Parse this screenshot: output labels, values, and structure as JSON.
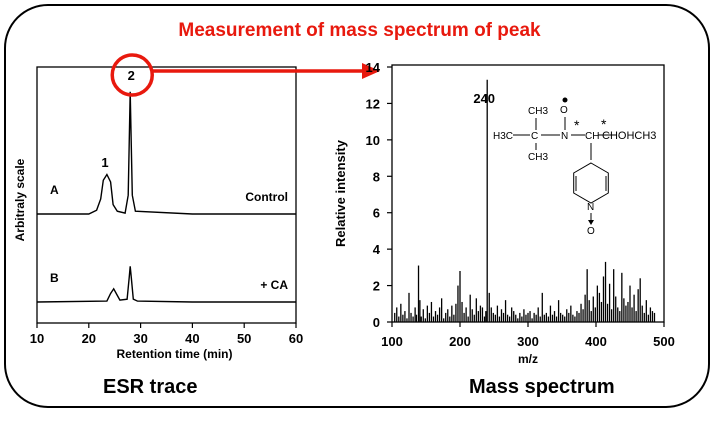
{
  "headline": "Measurement of mass spectrum of peak",
  "chart_data": [
    {
      "type": "line",
      "caption": "ESR trace",
      "xlabel": "Retention time (min)",
      "ylabel": "Arbitraly scale",
      "xlim": [
        10,
        60
      ],
      "xticks": [
        10,
        20,
        30,
        40,
        50,
        60
      ],
      "grid": false,
      "peak_labels": [
        {
          "label": "1",
          "x": 23.5
        },
        {
          "label": "2",
          "x": 28.0
        }
      ],
      "highlighted_peak": "2",
      "series": [
        {
          "label": "A",
          "note": "Control",
          "x": [
            10,
            20,
            21.5,
            22.3,
            22.8,
            23.5,
            24.2,
            24.7,
            25.5,
            27.0,
            27.6,
            28.0,
            28.4,
            29.0,
            40,
            60
          ],
          "y": [
            0,
            0,
            0.4,
            1.6,
            3.6,
            4.2,
            3.4,
            1.0,
            0.3,
            0.1,
            2.0,
            13.0,
            2.0,
            0.3,
            0,
            0
          ]
        },
        {
          "label": "B",
          "note": "+ CA",
          "x": [
            10,
            23.5,
            24.2,
            24.8,
            25.4,
            26.0,
            27.4,
            27.8,
            28.0,
            28.2,
            28.6,
            29.4,
            40,
            60
          ],
          "y": [
            0,
            0.1,
            0.9,
            1.4,
            0.8,
            0.2,
            0.3,
            2.6,
            3.8,
            2.6,
            0.3,
            0.1,
            0,
            0
          ]
        }
      ]
    },
    {
      "type": "bar",
      "caption": "Mass spectrum",
      "xlabel": "m/z",
      "ylabel": "Relative intensity",
      "xlim": [
        100,
        500
      ],
      "ylim": [
        0,
        14
      ],
      "xticks": [
        100,
        200,
        300,
        400,
        500
      ],
      "yticks": [
        0,
        2,
        4,
        6,
        8,
        10,
        12,
        14
      ],
      "grid": false,
      "annotations": [
        {
          "text": "240",
          "x": 240
        }
      ],
      "structure": {
        "top_methyl": "CH3",
        "left_methyl": "H3C",
        "bottom_methyl": "CH3",
        "quaternary_carbon": "C",
        "nitrogen": "N",
        "oxygen": "O",
        "methine": "CH",
        "side_chain": "CHOHCH3",
        "star": "*",
        "ring_nitrogen": "N",
        "n_oxide": "O"
      },
      "x": [
        104,
        107,
        110,
        113,
        116,
        119,
        122,
        125,
        128,
        131,
        134,
        136,
        139,
        141,
        143,
        146,
        149,
        152,
        155,
        158,
        161,
        164,
        167,
        170,
        173,
        176,
        179,
        182,
        185,
        188,
        191,
        194,
        197,
        200,
        203,
        206,
        209,
        212,
        215,
        218,
        221,
        224,
        227,
        230,
        233,
        236,
        238,
        240,
        243,
        246,
        249,
        252,
        255,
        258,
        261,
        264,
        267,
        270,
        273,
        276,
        279,
        282,
        285,
        288,
        291,
        294,
        297,
        300,
        303,
        306,
        309,
        312,
        315,
        318,
        321,
        324,
        327,
        330,
        333,
        336,
        339,
        342,
        345,
        348,
        351,
        354,
        357,
        360,
        363,
        366,
        369,
        372,
        375,
        378,
        381,
        384,
        387,
        390,
        393,
        396,
        399,
        402,
        405,
        408,
        411,
        414,
        417,
        420,
        423,
        426,
        429,
        432,
        435,
        438,
        441,
        444,
        447,
        450,
        453,
        456,
        459,
        462,
        465,
        468,
        471,
        474,
        477,
        480,
        483,
        486
      ],
      "y": [
        0.5,
        0.8,
        0.3,
        1.0,
        0.4,
        0.6,
        0.2,
        1.6,
        0.5,
        0.3,
        0.8,
        0.4,
        3.1,
        1.2,
        0.3,
        0.7,
        0.2,
        0.9,
        0.5,
        1.1,
        0.3,
        0.6,
        0.4,
        0.8,
        1.3,
        0.2,
        0.5,
        0.7,
        0.3,
        0.9,
        0.4,
        1.0,
        2.0,
        2.8,
        1.1,
        0.5,
        0.8,
        0.3,
        1.5,
        0.7,
        0.4,
        1.3,
        0.6,
        0.9,
        0.8,
        0.3,
        0.6,
        13.3,
        1.6,
        0.8,
        0.5,
        0.4,
        0.9,
        0.3,
        0.7,
        0.5,
        1.2,
        0.4,
        0.3,
        0.8,
        0.6,
        0.4,
        0.2,
        0.5,
        0.3,
        0.7,
        0.4,
        0.5,
        0.6,
        0.2,
        0.5,
        0.4,
        0.8,
        0.3,
        1.6,
        0.4,
        0.5,
        0.3,
        0.9,
        0.4,
        0.6,
        0.3,
        1.2,
        0.5,
        0.4,
        0.3,
        0.7,
        0.5,
        0.9,
        0.4,
        0.3,
        0.6,
        0.5,
        1.0,
        0.7,
        1.5,
        2.9,
        1.2,
        0.6,
        1.4,
        0.8,
        2.0,
        1.6,
        1.1,
        2.5,
        3.3,
        1.0,
        2.1,
        0.7,
        2.9,
        1.4,
        0.8,
        0.6,
        2.7,
        1.3,
        0.9,
        1.1,
        2.0,
        0.8,
        1.5,
        0.6,
        1.8,
        2.4,
        0.9,
        0.5,
        1.2,
        0.4,
        0.8,
        0.6,
        0.5
      ]
    }
  ]
}
